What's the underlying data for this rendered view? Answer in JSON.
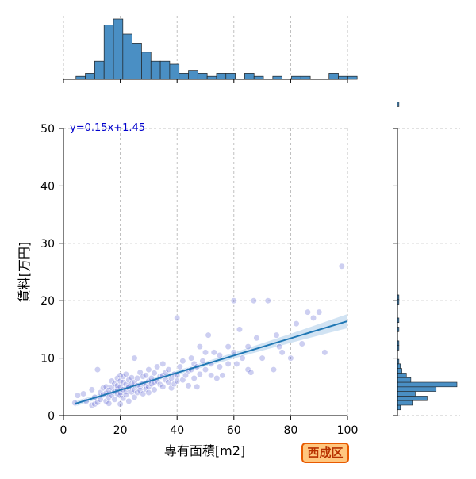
{
  "chart_data": {
    "type": "scatter",
    "title": "",
    "xlabel": "専有面積[m2]",
    "ylabel": "賃料[万円]",
    "xlim": [
      0,
      100
    ],
    "ylim": [
      0,
      50
    ],
    "x_ticks": [
      "0",
      "20",
      "40",
      "60",
      "80",
      "100"
    ],
    "y_ticks": [
      "0",
      "10",
      "20",
      "30",
      "40",
      "50"
    ],
    "grid": true,
    "regression": {
      "equation_label": "y=0.15x+1.45",
      "slope": 0.15,
      "intercept": 1.45,
      "x_range": [
        4,
        100
      ]
    },
    "points": [
      [
        4,
        2.2
      ],
      [
        5,
        3.5
      ],
      [
        7,
        3.8
      ],
      [
        8,
        2.5
      ],
      [
        10,
        1.8
      ],
      [
        10,
        4.5
      ],
      [
        11,
        2
      ],
      [
        11,
        3.2
      ],
      [
        12,
        8
      ],
      [
        12,
        2.3
      ],
      [
        13,
        4
      ],
      [
        13,
        2.8
      ],
      [
        14,
        3.6
      ],
      [
        14,
        4.8
      ],
      [
        15,
        2.5
      ],
      [
        15,
        3.9
      ],
      [
        15,
        5
      ],
      [
        16,
        3.2
      ],
      [
        16,
        4.4
      ],
      [
        16,
        2.1
      ],
      [
        17,
        4.9
      ],
      [
        17,
        3.5
      ],
      [
        17,
        6
      ],
      [
        18,
        4.2
      ],
      [
        18,
        5.5
      ],
      [
        18,
        2.8
      ],
      [
        19,
        4.6
      ],
      [
        19,
        3.8
      ],
      [
        19,
        6.5
      ],
      [
        19,
        5.2
      ],
      [
        20,
        4
      ],
      [
        20,
        5
      ],
      [
        20,
        6
      ],
      [
        20,
        7
      ],
      [
        20,
        3.5
      ],
      [
        20,
        2
      ],
      [
        21,
        4.5
      ],
      [
        21,
        5.8
      ],
      [
        21,
        6.8
      ],
      [
        21,
        3
      ],
      [
        22,
        4.2
      ],
      [
        22,
        5.4
      ],
      [
        22,
        7.2
      ],
      [
        22,
        3.6
      ],
      [
        23,
        4.8
      ],
      [
        23,
        6.2
      ],
      [
        23,
        5
      ],
      [
        23,
        2.5
      ],
      [
        24,
        5.5
      ],
      [
        24,
        4.1
      ],
      [
        24,
        6.6
      ],
      [
        25,
        4.5
      ],
      [
        25,
        5.8
      ],
      [
        25,
        3.2
      ],
      [
        25,
        10
      ],
      [
        26,
        5.2
      ],
      [
        26,
        6.5
      ],
      [
        26,
        4
      ],
      [
        27,
        5
      ],
      [
        27,
        7.5
      ],
      [
        27,
        4.4
      ],
      [
        28,
        5.6
      ],
      [
        28,
        6.8
      ],
      [
        28,
        3.8
      ],
      [
        29,
        5.2
      ],
      [
        29,
        7
      ],
      [
        29,
        4.6
      ],
      [
        30,
        6
      ],
      [
        30,
        5
      ],
      [
        30,
        8
      ],
      [
        30,
        4
      ],
      [
        31,
        5.5
      ],
      [
        31,
        6.5
      ],
      [
        32,
        5.8
      ],
      [
        32,
        7.4
      ],
      [
        32,
        4.5
      ],
      [
        33,
        6
      ],
      [
        33,
        8.5
      ],
      [
        34,
        5.4
      ],
      [
        34,
        6.8
      ],
      [
        35,
        7
      ],
      [
        35,
        5
      ],
      [
        35,
        9
      ],
      [
        36,
        6.2
      ],
      [
        36,
        7.5
      ],
      [
        37,
        5.8
      ],
      [
        37,
        8
      ],
      [
        38,
        6.5
      ],
      [
        38,
        4.8
      ],
      [
        39,
        7.2
      ],
      [
        39,
        5.5
      ],
      [
        40,
        7
      ],
      [
        40,
        6
      ],
      [
        40,
        17
      ],
      [
        41,
        8.5
      ],
      [
        42,
        6.2
      ],
      [
        42,
        9.5
      ],
      [
        43,
        7
      ],
      [
        44,
        7.8
      ],
      [
        44,
        5.2
      ],
      [
        45,
        8
      ],
      [
        45,
        10
      ],
      [
        46,
        6.5
      ],
      [
        46,
        9
      ],
      [
        47,
        8.5
      ],
      [
        47,
        5
      ],
      [
        48,
        12
      ],
      [
        48,
        7.2
      ],
      [
        49,
        9.5
      ],
      [
        50,
        8
      ],
      [
        50,
        11
      ],
      [
        51,
        14
      ],
      [
        52,
        9
      ],
      [
        52,
        7
      ],
      [
        53,
        11
      ],
      [
        54,
        6.5
      ],
      [
        55,
        8.5
      ],
      [
        55,
        10.5
      ],
      [
        56,
        7
      ],
      [
        58,
        9
      ],
      [
        58,
        12
      ],
      [
        60,
        11
      ],
      [
        60,
        20
      ],
      [
        61,
        9
      ],
      [
        62,
        15
      ],
      [
        63,
        10
      ],
      [
        65,
        8
      ],
      [
        65,
        12
      ],
      [
        66,
        7.5
      ],
      [
        67,
        20
      ],
      [
        68,
        13.5
      ],
      [
        70,
        10
      ],
      [
        72,
        20
      ],
      [
        74,
        8
      ],
      [
        75,
        14
      ],
      [
        76,
        12
      ],
      [
        77,
        11
      ],
      [
        80,
        10
      ],
      [
        82,
        16
      ],
      [
        84,
        12.5
      ],
      [
        86,
        18
      ],
      [
        88,
        17
      ],
      [
        90,
        18
      ],
      [
        92,
        11
      ],
      [
        98,
        26
      ]
    ],
    "x_histogram": {
      "bin_start": 4.4,
      "bin_width": 3.3,
      "counts": [
        1,
        2,
        6,
        18,
        20,
        15,
        12,
        9,
        6,
        6,
        5,
        2,
        3,
        2,
        1,
        2,
        2,
        0,
        2,
        1,
        0,
        1,
        0,
        1,
        1,
        0,
        0,
        2,
        1,
        1
      ]
    },
    "y_histogram": {
      "bin_start": 1.0,
      "bin_width": 0.8,
      "counts": [
        2,
        10,
        20,
        12,
        26,
        40,
        9,
        6,
        3,
        2,
        1,
        0,
        0,
        1,
        1,
        0,
        0,
        1,
        0,
        1,
        0,
        0,
        0,
        1,
        1,
        0,
        0,
        0,
        0,
        0,
        0,
        0,
        0,
        0,
        0,
        0,
        0,
        0,
        0,
        0,
        0,
        0,
        0,
        0,
        0,
        0,
        0,
        0,
        0,
        0,
        0,
        0,
        0,
        0,
        0,
        0,
        0,
        0,
        0,
        0,
        0,
        0,
        0,
        0,
        0,
        0,
        1
      ]
    },
    "colors": {
      "points": "#5a5fd0",
      "regression_line": "#1f77b4",
      "ci_band": "#c6dcf0",
      "hist_fill": "#4a8fc4",
      "equation_text": "#0000cc",
      "grid": "#b0b0b0"
    }
  },
  "badge": {
    "label": "西成区",
    "color": "#e85a00"
  }
}
